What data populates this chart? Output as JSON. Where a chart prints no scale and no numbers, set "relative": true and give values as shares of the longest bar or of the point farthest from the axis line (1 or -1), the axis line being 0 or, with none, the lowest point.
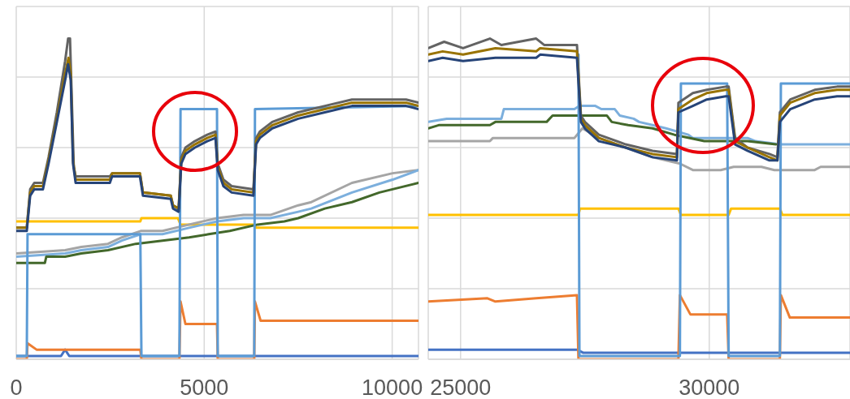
{
  "chart_data": [
    {
      "type": "line",
      "relative": true,
      "xlim": [
        0,
        10700
      ],
      "xticks": [
        0,
        5000,
        10000
      ],
      "grid": true,
      "series": [
        {
          "color": "#4472c4",
          "x": [
            0,
            1190,
            1300,
            1410,
            3300,
            10700
          ],
          "values": [
            0.01,
            0.01,
            0.03,
            0.01,
            0.01,
            0.01
          ]
        },
        {
          "color": "#ed7d31",
          "x": [
            0,
            280,
            300,
            540,
            3300,
            3330,
            4340,
            4370,
            4500,
            5340,
            5360,
            6330,
            6350,
            6500,
            10700
          ],
          "values": [
            0,
            0,
            0.05,
            0.03,
            0.03,
            0,
            0,
            0.18,
            0.11,
            0.11,
            0,
            0,
            0.18,
            0.12,
            0.12
          ]
        },
        {
          "color": "#ffc000",
          "x": [
            0,
            3300,
            3330,
            4300,
            4370,
            6330,
            6380,
            10700
          ],
          "values": [
            0.43,
            0.43,
            0.44,
            0.44,
            0.42,
            0.42,
            0.41,
            0.41
          ]
        },
        {
          "color": "#a5a5a5",
          "x": [
            0,
            1300,
            1730,
            2440,
            2810,
            3310,
            3890,
            4600,
            5340,
            6050,
            6760,
            7500,
            7850,
            8930,
            10010,
            10700
          ],
          "values": [
            0.33,
            0.34,
            0.35,
            0.36,
            0.38,
            0.4,
            0.4,
            0.42,
            0.44,
            0.45,
            0.45,
            0.48,
            0.49,
            0.55,
            0.58,
            0.59
          ]
        },
        {
          "color": "#7cafdd",
          "x": [
            0,
            1300,
            1730,
            2440,
            2810,
            3310,
            3890,
            4600,
            5340,
            6050,
            6760,
            7500,
            7850,
            8930,
            10010,
            10700
          ],
          "values": [
            0.32,
            0.33,
            0.34,
            0.35,
            0.37,
            0.39,
            0.39,
            0.41,
            0.43,
            0.44,
            0.44,
            0.46,
            0.47,
            0.52,
            0.56,
            0.59
          ]
        },
        {
          "color": "#43682b",
          "x": [
            0,
            760,
            800,
            1300,
            1730,
            2440,
            3180,
            3890,
            4600,
            5120,
            5680,
            6420,
            7130,
            7500,
            8210,
            8930,
            9660,
            10010,
            10700
          ],
          "values": [
            0.3,
            0.3,
            0.32,
            0.32,
            0.33,
            0.34,
            0.36,
            0.37,
            0.38,
            0.39,
            0.4,
            0.42,
            0.43,
            0.44,
            0.47,
            0.49,
            0.52,
            0.53,
            0.55
          ]
        },
        {
          "color": "#5b9bd5",
          "x": [
            0,
            280,
            300,
            3300,
            3330,
            4340,
            4370,
            5340,
            5360,
            6330,
            6350,
            10700
          ],
          "values": [
            0.01,
            0.01,
            0.39,
            0.39,
            0.01,
            0.01,
            0.78,
            0.78,
            0.01,
            0.01,
            0.78,
            0.79
          ]
        },
        {
          "color": "#636363",
          "x": [
            0,
            280,
            370,
            480,
            710,
            860,
            1080,
            1300,
            1380,
            1430,
            1480,
            1530,
            1580,
            2490,
            2550,
            3290,
            3370,
            4110,
            4170,
            4320,
            4390,
            4500,
            4750,
            5080,
            5300,
            5360,
            5510,
            5730,
            6310,
            6380,
            6480,
            6810,
            7500,
            8210,
            8930,
            9660,
            10370,
            10700
          ],
          "values": [
            0.41,
            0.41,
            0.53,
            0.55,
            0.55,
            0.63,
            0.77,
            0.93,
            1,
            1,
            0.8,
            0.6,
            0.57,
            0.57,
            0.58,
            0.58,
            0.52,
            0.51,
            0.48,
            0.47,
            0.63,
            0.66,
            0.68,
            0.7,
            0.71,
            0.61,
            0.56,
            0.54,
            0.53,
            0.69,
            0.71,
            0.74,
            0.77,
            0.79,
            0.81,
            0.81,
            0.81,
            0.8
          ]
        },
        {
          "color": "#997300",
          "x": [
            0,
            280,
            370,
            480,
            710,
            860,
            1080,
            1300,
            1390,
            1450,
            1510,
            1580,
            2490,
            2550,
            3290,
            3370,
            4110,
            4170,
            4320,
            4390,
            4500,
            4750,
            5080,
            5300,
            5360,
            5510,
            5730,
            6310,
            6380,
            6480,
            6810,
            7500,
            8210,
            8930,
            9660,
            10370,
            10700
          ],
          "values": [
            0.41,
            0.41,
            0.52,
            0.54,
            0.54,
            0.62,
            0.75,
            0.89,
            0.94,
            0.89,
            0.62,
            0.56,
            0.56,
            0.58,
            0.58,
            0.52,
            0.51,
            0.48,
            0.47,
            0.62,
            0.65,
            0.67,
            0.69,
            0.7,
            0.6,
            0.55,
            0.53,
            0.52,
            0.68,
            0.7,
            0.73,
            0.76,
            0.78,
            0.8,
            0.8,
            0.8,
            0.79
          ]
        },
        {
          "color": "#264478",
          "x": [
            0,
            280,
            370,
            480,
            710,
            860,
            1080,
            1300,
            1380,
            1450,
            1510,
            1580,
            2490,
            2550,
            3290,
            3370,
            4110,
            4170,
            4320,
            4390,
            4500,
            4750,
            5080,
            5300,
            5360,
            5510,
            5730,
            6310,
            6380,
            6480,
            6810,
            7500,
            8210,
            8930,
            9660,
            10370,
            10700
          ],
          "values": [
            0.4,
            0.4,
            0.51,
            0.53,
            0.53,
            0.61,
            0.74,
            0.87,
            0.92,
            0.87,
            0.61,
            0.55,
            0.55,
            0.57,
            0.57,
            0.51,
            0.5,
            0.47,
            0.46,
            0.61,
            0.64,
            0.66,
            0.68,
            0.69,
            0.59,
            0.54,
            0.52,
            0.51,
            0.67,
            0.69,
            0.72,
            0.75,
            0.77,
            0.79,
            0.79,
            0.79,
            0.78
          ]
        }
      ]
    },
    {
      "type": "line",
      "relative": true,
      "xlim": [
        24350,
        32830
      ],
      "xticks": [
        25000,
        30000
      ],
      "grid": true,
      "series": [
        {
          "color": "#4472c4",
          "x": [
            24350,
            27340,
            27470,
            32830
          ],
          "values": [
            0.03,
            0.03,
            0.02,
            0.02
          ]
        },
        {
          "color": "#ed7d31",
          "x": [
            24350,
            25540,
            25700,
            26520,
            27340,
            27370,
            29380,
            29410,
            29620,
            30360,
            30390,
            31420,
            31440,
            31620,
            32830
          ],
          "values": [
            0.18,
            0.19,
            0.18,
            0.19,
            0.2,
            0,
            0,
            0.2,
            0.14,
            0.14,
            0,
            0,
            0.2,
            0.13,
            0.13
          ]
        },
        {
          "color": "#ffc000",
          "x": [
            24350,
            27370,
            27400,
            29380,
            29430,
            30390,
            30440,
            31420,
            31470,
            32830
          ],
          "values": [
            0.45,
            0.45,
            0.47,
            0.47,
            0.45,
            0.45,
            0.47,
            0.47,
            0.45,
            0.45
          ]
        },
        {
          "color": "#a5a5a5",
          "x": [
            24350,
            25590,
            25650,
            27290,
            27450,
            27780,
            28320,
            28860,
            29410,
            29670,
            30230,
            30490,
            31050,
            31310,
            32120,
            32240,
            32830
          ],
          "values": [
            0.68,
            0.68,
            0.69,
            0.69,
            0.72,
            0.69,
            0.66,
            0.63,
            0.61,
            0.59,
            0.59,
            0.6,
            0.6,
            0.59,
            0.59,
            0.6,
            0.6
          ]
        },
        {
          "color": "#7cafdd",
          "x": [
            24350,
            24720,
            25820,
            25870,
            27290,
            27390,
            27710,
            27830,
            28100,
            28200,
            28480,
            28590,
            28860,
            29130,
            29580,
            29670,
            30770,
            30930,
            31420,
            31470,
            32830
          ],
          "values": [
            0.74,
            0.75,
            0.75,
            0.78,
            0.78,
            0.79,
            0.79,
            0.78,
            0.78,
            0.76,
            0.75,
            0.74,
            0.73,
            0.72,
            0.7,
            0.69,
            0.69,
            0.68,
            0.67,
            0.67,
            0.67
          ]
        },
        {
          "color": "#43682b",
          "x": [
            24350,
            24560,
            25590,
            25700,
            26730,
            26850,
            27940,
            28040,
            28370,
            28860,
            29300,
            29900,
            30770,
            31340
          ],
          "values": [
            0.72,
            0.73,
            0.73,
            0.74,
            0.74,
            0.76,
            0.76,
            0.74,
            0.73,
            0.72,
            0.7,
            0.68,
            0.68,
            0.67
          ]
        },
        {
          "color": "#5b9bd5",
          "x": [
            27370,
            27390,
            29410,
            29430,
            30360,
            30390,
            31420,
            31440,
            32830
          ],
          "values": [
            0.95,
            0.01,
            0.01,
            0.86,
            0.86,
            0.01,
            0.01,
            0.86,
            0.86
          ]
        },
        {
          "color": "#636363",
          "x": [
            24350,
            24670,
            25050,
            25590,
            25820,
            26520,
            26680,
            27340,
            27420,
            27500,
            27780,
            28320,
            28860,
            29350,
            29380,
            29670,
            29950,
            30330,
            30390,
            30520,
            30770,
            31210,
            31370,
            31420,
            31630,
            32120,
            32570,
            32830
          ],
          "values": [
            0.97,
            0.99,
            0.97,
            1,
            0.98,
            1,
            0.98,
            0.98,
            0.76,
            0.74,
            0.7,
            0.67,
            0.65,
            0.64,
            0.8,
            0.83,
            0.84,
            0.85,
            0.85,
            0.69,
            0.66,
            0.64,
            0.63,
            0.77,
            0.81,
            0.84,
            0.85,
            0.85
          ]
        },
        {
          "color": "#997300",
          "x": [
            24350,
            24640,
            25050,
            25700,
            26520,
            26600,
            27340,
            27420,
            27500,
            27780,
            28320,
            28860,
            29350,
            29380,
            29670,
            29950,
            30330,
            30390,
            30520,
            30770,
            31210,
            31370,
            31420,
            31630,
            32120,
            32570,
            32830
          ],
          "values": [
            0.95,
            0.96,
            0.95,
            0.97,
            0.96,
            0.97,
            0.96,
            0.75,
            0.73,
            0.69,
            0.66,
            0.64,
            0.63,
            0.78,
            0.81,
            0.83,
            0.84,
            0.84,
            0.68,
            0.66,
            0.63,
            0.62,
            0.76,
            0.8,
            0.83,
            0.84,
            0.84
          ]
        },
        {
          "color": "#264478",
          "x": [
            24350,
            24640,
            25050,
            25700,
            26520,
            26600,
            27340,
            27420,
            27500,
            27780,
            28320,
            28860,
            29350,
            29380,
            29670,
            29950,
            30330,
            30390,
            30520,
            30770,
            31210,
            31370,
            31420,
            31630,
            32120,
            32570,
            32830
          ],
          "values": [
            0.93,
            0.94,
            0.93,
            0.94,
            0.94,
            0.95,
            0.94,
            0.74,
            0.72,
            0.68,
            0.66,
            0.63,
            0.62,
            0.77,
            0.79,
            0.81,
            0.82,
            0.82,
            0.67,
            0.65,
            0.62,
            0.62,
            0.74,
            0.78,
            0.81,
            0.82,
            0.82
          ]
        }
      ]
    }
  ]
}
